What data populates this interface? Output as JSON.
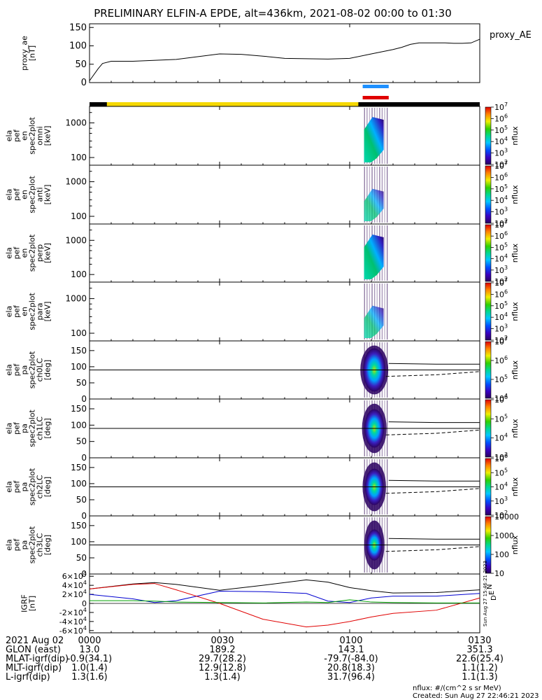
{
  "title": "PRELIMINARY ELFIN-A EPDE, alt=436km, 2021-08-02 00:00 to 01:30",
  "colors": {
    "sun_bar": "#f5d800",
    "sc_bar_blue": "#1e90ff",
    "sc_bar_red": "#e00000",
    "bx": "#0000d0",
    "by": "#e00000",
    "bz": "#00a000",
    "btot": "#000000"
  },
  "chart_data": [
    {
      "type": "line",
      "panel": "proxy_ae",
      "ylabel": "proxy_ae\n[nT]",
      "legend": "proxy_AE",
      "yticks": [
        "0",
        "50",
        "100",
        "150"
      ],
      "ylim": [
        0,
        160
      ],
      "x_minutes": [
        0,
        2,
        3,
        5,
        10,
        20,
        30,
        35,
        40,
        45,
        50,
        55,
        60,
        65,
        70,
        72,
        74,
        76,
        78,
        80,
        82,
        84,
        86,
        88,
        90
      ],
      "values": [
        5,
        38,
        52,
        58,
        58,
        63,
        78,
        77,
        72,
        66,
        65,
        64,
        66,
        78,
        90,
        96,
        104,
        108,
        108,
        108,
        108,
        107,
        107,
        108,
        118
      ],
      "xlim": [
        0,
        90
      ]
    },
    {
      "type": "heatmap",
      "panel": "omni",
      "ylabel": "ela\npef\nen\nspec2plot\nomni\n[keV]",
      "yticks": [
        "100",
        "1000"
      ],
      "colorbar_ticks": [
        "10^2",
        "10^3",
        "10^4",
        "10^5",
        "10^6",
        "10^7"
      ],
      "colorbar_label": "nflux",
      "x_minutes_range": [
        63,
        69
      ],
      "energy_range_keV": [
        60,
        3000
      ]
    },
    {
      "type": "heatmap",
      "panel": "anti",
      "ylabel": "ela\npef\nen\nspec2plot\nanti\n[keV]",
      "yticks": [
        "100",
        "1000"
      ],
      "colorbar_ticks": [
        "10^2",
        "10^3",
        "10^4",
        "10^5",
        "10^6",
        "10^7"
      ],
      "colorbar_label": "nflux"
    },
    {
      "type": "heatmap",
      "panel": "perp",
      "ylabel": "ela\npef\nen\nspec2plot\nperp\n[keV]",
      "yticks": [
        "100",
        "1000"
      ],
      "colorbar_ticks": [
        "10^2",
        "10^3",
        "10^4",
        "10^5",
        "10^6",
        "10^7"
      ],
      "colorbar_label": "nflux"
    },
    {
      "type": "heatmap",
      "panel": "para",
      "ylabel": "ela\npef\nen\nspec2plot\npara\n[keV]",
      "yticks": [
        "100",
        "1000"
      ],
      "colorbar_ticks": [
        "10^2",
        "10^3",
        "10^4",
        "10^5",
        "10^6",
        "10^7"
      ],
      "colorbar_label": "nflux"
    },
    {
      "type": "heatmap",
      "panel": "ch0LC",
      "ylabel": "ela\npef\npa\nspec2plot\nch0LC\n[deg]",
      "yticks": [
        "0",
        "50",
        "100",
        "150"
      ],
      "ylim": [
        0,
        180
      ],
      "colorbar_ticks": [
        "10^4",
        "10^5",
        "10^6",
        "10^7"
      ],
      "colorbar_label": "nflux"
    },
    {
      "type": "heatmap",
      "panel": "ch1LC",
      "ylabel": "ela\npef\npa\nspec2plot\nch1LC\n[deg]",
      "yticks": [
        "0",
        "50",
        "100",
        "150"
      ],
      "ylim": [
        0,
        180
      ],
      "colorbar_ticks": [
        "10^3",
        "10^4",
        "10^5",
        "10^6"
      ],
      "colorbar_label": "nflux"
    },
    {
      "type": "heatmap",
      "panel": "ch2LC",
      "ylabel": "ela\npef\npa\nspec2plot\nch2LC\n[deg]",
      "yticks": [
        "0",
        "50",
        "100",
        "150"
      ],
      "ylim": [
        0,
        180
      ],
      "colorbar_ticks": [
        "10^2",
        "10^3",
        "10^4",
        "10^5",
        "10^6"
      ],
      "colorbar_label": "nflux"
    },
    {
      "type": "heatmap",
      "panel": "ch3LC",
      "ylabel": "ela\npef\npa\nspec2plot\nch3LC\n[deg]",
      "yticks": [
        "0",
        "50",
        "100",
        "150"
      ],
      "ylim": [
        0,
        180
      ],
      "colorbar_ticks": [
        "10",
        "100",
        "1000",
        "10000"
      ],
      "colorbar_label": "nflux"
    },
    {
      "type": "line",
      "panel": "IGRF",
      "ylabel": "IGRF\n[nT]",
      "yticks": [
        "-6x10^4",
        "-4x10^4",
        "-2x10^4",
        "0",
        "2x10^4",
        "4x10^4",
        "6x10^4"
      ],
      "ylim": [
        -65000,
        65000
      ],
      "legend": [
        "N",
        "E",
        "D"
      ],
      "x_minutes": [
        0,
        10,
        15,
        20,
        30,
        40,
        50,
        55,
        60,
        65,
        70,
        80,
        90
      ],
      "series": [
        {
          "name": "Btot",
          "values": [
            32000,
            43000,
            46000,
            42000,
            29000,
            40000,
            52000,
            47000,
            35000,
            28000,
            23000,
            24000,
            30000
          ]
        },
        {
          "name": "N",
          "values": [
            20000,
            10000,
            2000,
            6000,
            27000,
            26000,
            22000,
            5000,
            2000,
            12000,
            16000,
            16000,
            22000
          ]
        },
        {
          "name": "D",
          "values": [
            32000,
            42000,
            44000,
            30000,
            0,
            -35000,
            -52000,
            -48000,
            -40000,
            -30000,
            -22000,
            -15000,
            12000
          ]
        },
        {
          "name": "E",
          "values": [
            6000,
            6000,
            5000,
            3000,
            2000,
            1000,
            3000,
            2000,
            8000,
            3000,
            2000,
            1000,
            1000
          ]
        }
      ]
    }
  ],
  "xaxis": {
    "tick_labels": [
      "2021 Aug 02",
      "0000",
      "0030",
      "0100",
      "0130"
    ],
    "rows": [
      {
        "label": "GLON (east)",
        "values": [
          "13.0",
          "189.2",
          "143.1",
          "351.3"
        ]
      },
      {
        "label": "MLAT-igrf(dip)",
        "values": [
          "-0.9(34.1)",
          "29.7(28.2)",
          "-79.7(-84.0)",
          "22.6(25.4)"
        ]
      },
      {
        "label": "MLT-igrf(dip)",
        "values": [
          "1.0(1.4)",
          "12.9(12.8)",
          "20.8(18.3)",
          "1.1(1.2)"
        ]
      },
      {
        "label": "L-igrf(dip)",
        "values": [
          "1.3(1.6)",
          "1.3(1.4)",
          "31.7(96.4)",
          "1.1(1.3)"
        ]
      }
    ]
  },
  "footer": {
    "units": "nflux: #/(cm^2 s sr MeV)",
    "created": "Created: Sun Aug 27 22:46:21 2023",
    "side_stamp": "Sun Aug 27 15:46:21 2023"
  }
}
